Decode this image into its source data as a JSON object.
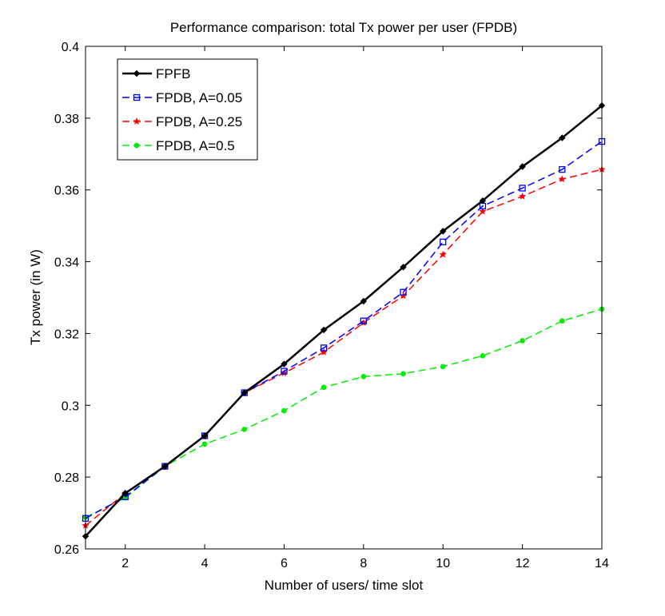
{
  "chart_data": {
    "type": "line",
    "title": "Performance comparison: total Tx power per user (FPDB)",
    "xlabel": "Number of users/ time slot",
    "ylabel": "Tx power (in W)",
    "xlim": [
      1,
      14
    ],
    "ylim": [
      0.26,
      0.4
    ],
    "xticks": [
      2,
      4,
      6,
      8,
      10,
      12,
      14
    ],
    "yticks": [
      0.26,
      0.28,
      0.3,
      0.32,
      0.34,
      0.36,
      0.38,
      0.4
    ],
    "ytick_labels": [
      "0.26",
      "0.28",
      "0.3",
      "0.32",
      "0.34",
      "0.36",
      "0.38",
      "0.4"
    ],
    "grid": false,
    "legend_position": "top-left",
    "x": [
      1,
      2,
      3,
      4,
      5,
      6,
      7,
      8,
      9,
      10,
      11,
      12,
      13,
      14
    ],
    "series": [
      {
        "name": "FPFB",
        "color": "#000000",
        "style": "solid",
        "marker": "diamond",
        "values": [
          0.2635,
          0.2755,
          0.283,
          0.2915,
          0.3035,
          0.3115,
          0.321,
          0.329,
          0.3385,
          0.3485,
          0.357,
          0.3665,
          0.3745,
          0.3835
        ]
      },
      {
        "name": "FPDB, A=0.05",
        "color": "#0000ff",
        "style": "dashed",
        "marker": "square",
        "values": [
          0.2685,
          0.2745,
          0.283,
          0.2915,
          0.3035,
          0.3095,
          0.316,
          0.3235,
          0.3315,
          0.3455,
          0.3555,
          0.3605,
          0.3657,
          0.3735
        ]
      },
      {
        "name": "FPDB, A=0.25",
        "color": "#ff0000",
        "style": "dashed",
        "marker": "star",
        "values": [
          0.2665,
          0.2755,
          0.283,
          0.2915,
          0.3035,
          0.309,
          0.3148,
          0.323,
          0.3305,
          0.342,
          0.354,
          0.3582,
          0.363,
          0.3657
        ]
      },
      {
        "name": "FPDB, A=0.5",
        "color": "#00ee00",
        "style": "dashed",
        "marker": "circle",
        "values": [
          0.2688,
          0.2742,
          0.283,
          0.2892,
          0.2933,
          0.2985,
          0.305,
          0.308,
          0.3088,
          0.3108,
          0.3138,
          0.318,
          0.3235,
          0.3268
        ]
      }
    ]
  }
}
